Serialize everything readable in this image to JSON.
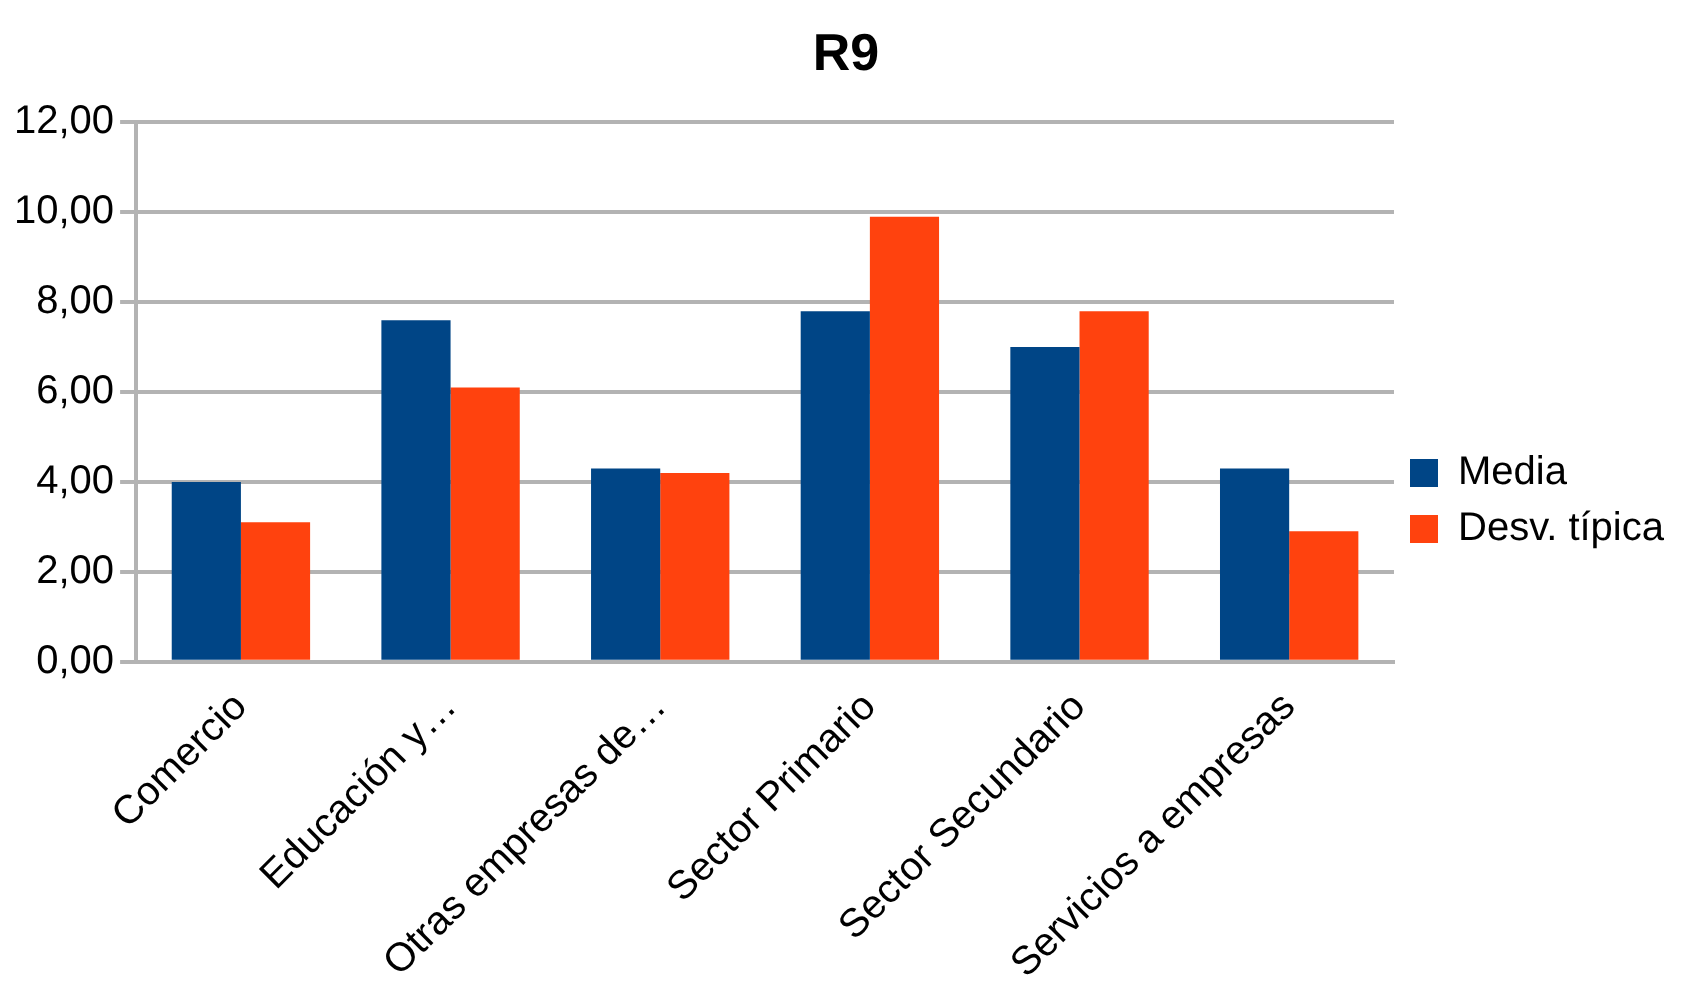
{
  "chart_data": {
    "type": "bar",
    "title": "R9",
    "categories": [
      "Comercio",
      "Educación y…",
      "Otras empresas de…",
      "Sector Primario",
      "Sector Secundario",
      "Servicios a empresas"
    ],
    "series": [
      {
        "name": "Media",
        "color": "#004586",
        "values": [
          4.0,
          7.6,
          4.3,
          7.8,
          7.0,
          4.3
        ]
      },
      {
        "name": "Desv. típica",
        "color": "#ff420e",
        "values": [
          3.1,
          6.1,
          4.2,
          9.9,
          7.8,
          2.9
        ]
      }
    ],
    "ylim": [
      0,
      12
    ],
    "yticks": [
      {
        "value": 0,
        "label": "0,00"
      },
      {
        "value": 2,
        "label": "2,00"
      },
      {
        "value": 4,
        "label": "4,00"
      },
      {
        "value": 6,
        "label": "6,00"
      },
      {
        "value": 8,
        "label": "8,00"
      },
      {
        "value": 10,
        "label": "10,00"
      },
      {
        "value": 12,
        "label": "12,00"
      }
    ],
    "grid": "y",
    "legend": "right"
  }
}
